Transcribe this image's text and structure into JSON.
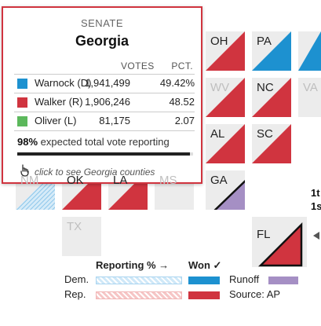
{
  "map": {
    "tiles": [
      {
        "abbr": "OH",
        "status": "won-rep"
      },
      {
        "abbr": "PA",
        "status": "won-dem"
      },
      {
        "abbr": "",
        "status": "won-dem"
      },
      {
        "abbr": "WV",
        "status": "won-rep"
      },
      {
        "abbr": "NC",
        "status": "won-rep"
      },
      {
        "abbr": "VA",
        "status": "won-dem"
      },
      {
        "abbr": "AL",
        "status": "won-rep"
      },
      {
        "abbr": "SC",
        "status": "won-rep"
      },
      {
        "abbr": "GA",
        "status": "runoff"
      },
      {
        "abbr": "FL",
        "status": "won-rep"
      },
      {
        "abbr": "OK",
        "status": "won-rep"
      },
      {
        "abbr": "LA",
        "status": "won-rep"
      },
      {
        "abbr": "MS",
        "status": "none"
      },
      {
        "abbr": "NM",
        "status": "reporting-dem"
      },
      {
        "abbr": "TX",
        "status": "none"
      }
    ],
    "callouts": [
      "1t",
      "1s"
    ]
  },
  "tooltip": {
    "race": "SENATE",
    "state": "Georgia",
    "col_votes": "VOTES",
    "col_pct": "PCT.",
    "candidates": [
      {
        "name": "Warnock (D)",
        "votes": "1,941,499",
        "pct": "49.42%",
        "color": "#1d91d0"
      },
      {
        "name": "Walker (R)",
        "votes": "1,906,246",
        "pct": "48.52",
        "color": "#d0343f"
      },
      {
        "name": "Oliver (L)",
        "votes": "81,175",
        "pct": "2.07",
        "color": "#5cb85c"
      }
    ],
    "reporting_pct": "98%",
    "reporting_text": "expected total vote reporting",
    "reporting_fraction": 0.98,
    "hint": "click to see Georgia counties"
  },
  "legend": {
    "reporting_label": "Reporting % →",
    "won_label": "Won ✓",
    "dem_label": "Dem.",
    "rep_label": "Rep.",
    "runoff_label": "Runoff",
    "source": "Source: AP",
    "colors": {
      "dem": "#1d91d0",
      "rep": "#d0343f",
      "runoff": "#a58fc4",
      "dem_light": "#a9d4f0",
      "rep_light": "#f2b5b5"
    }
  }
}
